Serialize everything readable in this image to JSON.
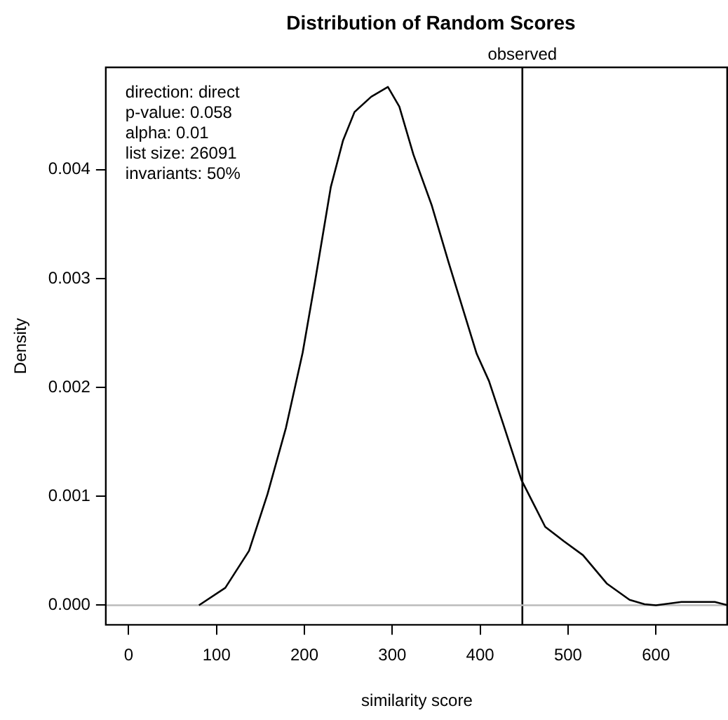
{
  "chart_data": {
    "type": "line",
    "title": "Distribution of Random Scores",
    "xlabel": "similarity score",
    "ylabel": "Density",
    "annotations": [
      "direction: direct",
      "p-value: 0.058",
      "alpha: 0.01",
      "list size: 26091",
      "invariants: 50%"
    ],
    "series": [
      {
        "color": "#000000",
        "x": [
          80,
          110,
          137,
          158,
          179,
          198,
          212,
          230,
          244,
          257,
          276,
          295,
          308,
          324,
          345,
          364,
          396,
          410,
          426,
          447,
          474,
          495,
          517,
          544,
          570,
          587,
          600,
          629,
          667,
          682
        ],
        "values": [
          0,
          0.00016,
          0.0005,
          0.00102,
          0.00163,
          0.00232,
          0.00297,
          0.00384,
          0.00427,
          0.00453,
          0.00467,
          0.00476,
          0.00458,
          0.00414,
          0.00367,
          0.00315,
          0.00231,
          0.00206,
          0.00167,
          0.00115,
          0.00072,
          0.00059,
          0.00046,
          0.0002,
          5e-05,
          1e-05,
          0,
          3e-05,
          3e-05,
          0
        ]
      }
    ],
    "ref_lines": [
      {
        "axis": "x",
        "value": 448,
        "label": "observed",
        "color": "#000000"
      },
      {
        "axis": "y",
        "value": 0,
        "label": null,
        "color": "#bbbbbb"
      }
    ],
    "xlim": [
      -26,
      682
    ],
    "ylim": [
      -0.00018,
      0.00494
    ],
    "xticks": [
      0,
      100,
      200,
      300,
      400,
      500,
      600
    ],
    "yticks": [
      {
        "value": 0,
        "label": "0.000"
      },
      {
        "value": 0.001,
        "label": "0.001"
      },
      {
        "value": 0.002,
        "label": "0.002"
      },
      {
        "value": 0.003,
        "label": "0.003"
      },
      {
        "value": 0.004,
        "label": "0.004"
      }
    ],
    "grid": false,
    "legend": false,
    "marker": "none",
    "line_style": "solid"
  }
}
